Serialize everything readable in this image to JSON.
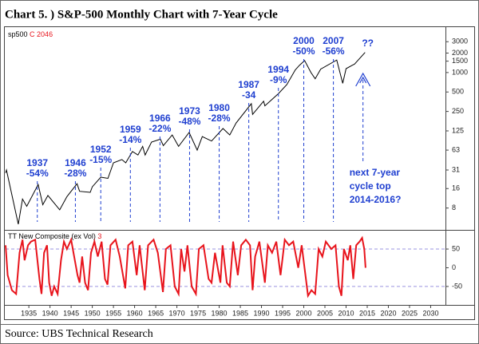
{
  "title": "Chart 5. )  S&P-500 Monthly Chart with 7-Year Cycle",
  "source": "Source: UBS Technical Research",
  "chart_data": [
    {
      "type": "line",
      "log_scale": true,
      "series": [
        {
          "name": "sp500",
          "value_label": "C 2046",
          "color": "#000000",
          "x": [
            1929.5,
            1929.7,
            1932.5,
            1933.5,
            1934.5,
            1937.2,
            1938.3,
            1939.5,
            1942.3,
            1944,
            1946.4,
            1947,
            1949.5,
            1950,
            1952,
            1953.7,
            1955,
            1957,
            1957.9,
            1959.5,
            1960.8,
            1961.9,
            1962.5,
            1964,
            1966.1,
            1966.8,
            1968.9,
            1970.4,
            1972.9,
            1974.8,
            1976,
            1978.2,
            1980.9,
            1982.5,
            1984,
            1987.6,
            1987.9,
            1990.5,
            1990.8,
            1994,
            1996,
            1998,
            1999,
            2000.2,
            2001.7,
            2002.7,
            2004,
            2007.8,
            2009.2,
            2010,
            2011.5,
            2012,
            2013,
            2014.5
          ],
          "values": [
            28,
            31,
            4.5,
            11,
            8.5,
            18.5,
            9,
            12.5,
            7.5,
            12,
            19,
            14.5,
            14,
            17,
            24,
            23,
            40,
            45,
            40,
            60,
            53,
            72,
            53,
            84,
            93,
            74,
            108,
            72,
            118,
            63,
            102,
            87,
            136,
            108,
            165,
            330,
            225,
            360,
            305,
            470,
            650,
            1100,
            1300,
            1530,
            1000,
            800,
            1130,
            1560,
            680,
            1150,
            1300,
            1350,
            1600,
            2046
          ]
        }
      ],
      "xlim": [
        1929.5,
        2033.5
      ],
      "ylim": [
        4,
        4500
      ],
      "yticks": [
        3000,
        2000,
        1500,
        1000,
        500,
        250,
        125,
        63,
        31,
        16,
        8
      ],
      "annotations": [
        {
          "x": 1937,
          "text": "-54%"
        },
        {
          "x": 1946,
          "text": "-28%"
        },
        {
          "x": 1952,
          "text": "-15%"
        },
        {
          "x": 1959,
          "text": "-14%"
        },
        {
          "x": 1966,
          "text": "-22%"
        },
        {
          "x": 1973,
          "text": "-48%"
        },
        {
          "x": 1980,
          "text": "-28%"
        },
        {
          "x": 1987,
          "text": "-34"
        },
        {
          "x": 1994,
          "text": "-9%"
        },
        {
          "x": 2000,
          "text": "-50%"
        },
        {
          "x": 2007,
          "text": "-56%"
        }
      ],
      "forecast": {
        "x": 2014,
        "mark": "??",
        "lines": [
          "next 7-year",
          "cycle top",
          "2014-2016?"
        ]
      }
    },
    {
      "type": "line",
      "series": [
        {
          "name": "TT New Composite (ex Vol)",
          "param": 3,
          "color": "#e8141c",
          "x": [
            1929.5,
            1930,
            1931,
            1932,
            1932.8,
            1933.5,
            1934,
            1934.8,
            1935.5,
            1936.5,
            1937.5,
            1938,
            1938.6,
            1939.3,
            1939.8,
            1940.4,
            1941,
            1941.8,
            1942.6,
            1943.3,
            1944,
            1945,
            1946.5,
            1947,
            1947.6,
            1948.3,
            1949,
            1949.7,
            1950.5,
            1951.3,
            1952.2,
            1953,
            1953.6,
            1954.3,
            1955.5,
            1956.5,
            1957.8,
            1958.5,
            1959.5,
            1960.5,
            1961.2,
            1962.4,
            1963.2,
            1964.5,
            1965.5,
            1966.7,
            1967.4,
            1968.5,
            1969.5,
            1970.4,
            1971,
            1971.8,
            1972.5,
            1973.5,
            1974.5,
            1975.2,
            1976.3,
            1977.5,
            1978.2,
            1979,
            1980.3,
            1980.8,
            1981.8,
            1982.5,
            1983.3,
            1984.4,
            1985.2,
            1986.3,
            1987.3,
            1987.9,
            1988.5,
            1989.5,
            1990.8,
            1991.5,
            1992.5,
            1993.5,
            1994.5,
            1995.5,
            1996.5,
            1997.5,
            1998.7,
            1999.5,
            2000.5,
            2001,
            2001.8,
            2002.7,
            2003.5,
            2004.4,
            2005.2,
            2006.5,
            2007.5,
            2008.3,
            2008.9,
            2009.5,
            2010.4,
            2011,
            2011.7,
            2012.4,
            2013.2,
            2013.8,
            2014.3,
            2014.6
          ],
          "values": [
            60,
            -20,
            -60,
            -70,
            40,
            75,
            20,
            60,
            70,
            75,
            -30,
            -70,
            40,
            60,
            -40,
            -75,
            -50,
            -70,
            20,
            70,
            50,
            75,
            -20,
            -40,
            30,
            -40,
            -60,
            40,
            70,
            30,
            70,
            -30,
            -45,
            60,
            75,
            30,
            -55,
            60,
            70,
            -20,
            60,
            -60,
            60,
            75,
            40,
            -65,
            50,
            60,
            -50,
            -70,
            50,
            -10,
            60,
            -50,
            -70,
            50,
            60,
            -30,
            -40,
            40,
            -40,
            60,
            -40,
            -50,
            70,
            -20,
            60,
            75,
            60,
            -60,
            30,
            70,
            -40,
            60,
            40,
            70,
            -20,
            75,
            60,
            70,
            0,
            60,
            -30,
            -75,
            -60,
            -70,
            50,
            30,
            70,
            50,
            60,
            -50,
            -75,
            50,
            20,
            60,
            -30,
            60,
            70,
            80,
            50,
            0
          ]
        }
      ],
      "xlim": [
        1929.5,
        2033.5
      ],
      "ylim": [
        -95,
        97
      ],
      "yticks": [
        50,
        0,
        -50
      ],
      "xticks": [
        1935,
        1940,
        1945,
        1950,
        1955,
        1960,
        1965,
        1970,
        1975,
        1980,
        1985,
        1990,
        1995,
        2000,
        2005,
        2010,
        2015,
        2020,
        2025,
        2030
      ]
    }
  ]
}
